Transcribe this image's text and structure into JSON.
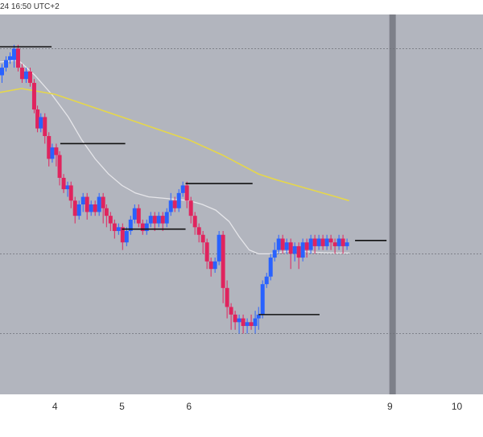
{
  "header": {
    "timestamp_text": "24 16:50 UTC+2"
  },
  "colors": {
    "background": "#b2b5be",
    "bull_candle": "#2962ff",
    "bear_candle": "#e0245e",
    "ma_fast": "#e6e6ea",
    "ma_slow": "#e6d74a",
    "level_lines": "#111111",
    "gridline": "#6f717a",
    "highlight_band": "#7d8089"
  },
  "chart_data": {
    "type": "candlestick",
    "title": "",
    "xlabel": "",
    "ylabel": "",
    "x_ticks": [
      {
        "label": "4",
        "x": 4
      },
      {
        "label": "5",
        "x": 5
      },
      {
        "label": "6",
        "x": 6
      },
      {
        "label": "9",
        "x": 9
      },
      {
        "label": "10",
        "x": 10
      }
    ],
    "xlim": [
      3.18,
      10.39
    ],
    "ylim": [
      0,
      100
    ],
    "y_gridlines": [
      91,
      37,
      16
    ],
    "highlight_x": 9.04,
    "series": [
      {
        "kind": "moving_average",
        "color_key": "ma_fast",
        "points": [
          [
            3.18,
            87.5
          ],
          [
            3.45,
            88
          ],
          [
            3.7,
            84
          ],
          [
            3.95,
            79
          ],
          [
            4.2,
            73
          ],
          [
            4.4,
            67
          ],
          [
            4.6,
            62
          ],
          [
            4.8,
            58
          ],
          [
            5.0,
            55
          ],
          [
            5.2,
            53
          ],
          [
            5.4,
            52
          ],
          [
            5.7,
            51.5
          ],
          [
            6.0,
            51
          ],
          [
            6.2,
            50
          ],
          [
            6.4,
            48.5
          ],
          [
            6.6,
            45.5
          ],
          [
            6.75,
            41.5
          ],
          [
            6.9,
            38
          ],
          [
            7.04,
            37
          ],
          [
            7.2,
            37
          ],
          [
            7.4,
            37.5
          ],
          [
            7.6,
            37.8
          ],
          [
            7.8,
            37.5
          ],
          [
            8.0,
            37.3
          ],
          [
            8.2,
            37.2
          ],
          [
            8.4,
            37.2
          ]
        ]
      },
      {
        "kind": "moving_average",
        "color_key": "ma_slow",
        "points": [
          [
            3.18,
            79.5
          ],
          [
            3.5,
            80.5
          ],
          [
            4.0,
            79
          ],
          [
            4.5,
            76
          ],
          [
            5.0,
            73
          ],
          [
            5.5,
            70
          ],
          [
            6.0,
            67
          ],
          [
            6.5,
            63
          ],
          [
            7.04,
            58
          ],
          [
            7.3,
            56.5
          ],
          [
            7.6,
            55
          ],
          [
            7.9,
            53.5
          ],
          [
            8.2,
            52
          ],
          [
            8.39,
            51
          ]
        ]
      },
      {
        "kind": "horizontal_levels",
        "color_key": "level_lines",
        "segments": [
          [
            3.18,
            3.95,
            91.5
          ],
          [
            4.08,
            5.05,
            66
          ],
          [
            5.0,
            5.95,
            43.5
          ],
          [
            5.95,
            6.95,
            55.5
          ],
          [
            7.04,
            7.95,
            21
          ],
          [
            8.48,
            8.95,
            40.5
          ]
        ]
      }
    ],
    "candles": [
      [
        3.21,
        84,
        86,
        82,
        87
      ],
      [
        3.27,
        86,
        88,
        85,
        89
      ],
      [
        3.33,
        88,
        89,
        87,
        90
      ],
      [
        3.39,
        88,
        91,
        86,
        92
      ],
      [
        3.45,
        91,
        86,
        85,
        92
      ],
      [
        3.51,
        86,
        83,
        82,
        87
      ],
      [
        3.57,
        83,
        85,
        82,
        86
      ],
      [
        3.63,
        85,
        82,
        81,
        86
      ],
      [
        3.69,
        82,
        75,
        74,
        83
      ],
      [
        3.74,
        75,
        70,
        69,
        76
      ],
      [
        3.79,
        70,
        73,
        69,
        74
      ],
      [
        3.85,
        73,
        68,
        66,
        74
      ],
      [
        3.91,
        68,
        62,
        60,
        69
      ],
      [
        3.96,
        62,
        65,
        61,
        66
      ],
      [
        4.02,
        65,
        63,
        60,
        66
      ],
      [
        4.07,
        63,
        57,
        55,
        64
      ],
      [
        4.13,
        57,
        54,
        53,
        58
      ],
      [
        4.19,
        54,
        55,
        52,
        56
      ],
      [
        4.24,
        55,
        51,
        49,
        56
      ],
      [
        4.3,
        51,
        47,
        45,
        52
      ],
      [
        4.36,
        47,
        50,
        46,
        51
      ],
      [
        4.42,
        50,
        52,
        48,
        53
      ],
      [
        4.48,
        52,
        48,
        46,
        53
      ],
      [
        4.54,
        48,
        50,
        47,
        51
      ],
      [
        4.6,
        50,
        48,
        47,
        51
      ],
      [
        4.66,
        48,
        52,
        47,
        53
      ],
      [
        4.72,
        52,
        49,
        45,
        53
      ],
      [
        4.77,
        49,
        47,
        44,
        50
      ],
      [
        4.83,
        47,
        45,
        43,
        48
      ],
      [
        4.89,
        45,
        43,
        41,
        46
      ],
      [
        4.95,
        43,
        44,
        42,
        45
      ],
      [
        5.01,
        44,
        40,
        38,
        45
      ],
      [
        5.07,
        40,
        43,
        39,
        44
      ],
      [
        5.13,
        43,
        46,
        42,
        47
      ],
      [
        5.19,
        46,
        49,
        45,
        50
      ],
      [
        5.25,
        49,
        45,
        44,
        50
      ],
      [
        5.31,
        45,
        43,
        42,
        46
      ],
      [
        5.37,
        43,
        45,
        42,
        46
      ],
      [
        5.43,
        45,
        47,
        44,
        48
      ],
      [
        5.49,
        47,
        45,
        43,
        48
      ],
      [
        5.55,
        45,
        47,
        44,
        48
      ],
      [
        5.61,
        47,
        45,
        43,
        48
      ],
      [
        5.67,
        45,
        48,
        44,
        49
      ],
      [
        5.73,
        48,
        51,
        47,
        53
      ],
      [
        5.79,
        51,
        49,
        48,
        52
      ],
      [
        5.85,
        49,
        53,
        48,
        54
      ],
      [
        5.91,
        53,
        55,
        52,
        56
      ],
      [
        5.97,
        55,
        51,
        49,
        56
      ],
      [
        6.03,
        51,
        47,
        45,
        52
      ],
      [
        6.09,
        47,
        44,
        42,
        48
      ],
      [
        6.15,
        44,
        42,
        40,
        45
      ],
      [
        6.21,
        42,
        40,
        37,
        43
      ],
      [
        6.27,
        40,
        35,
        33,
        41
      ],
      [
        6.33,
        35,
        33,
        31,
        36
      ],
      [
        6.39,
        33,
        35,
        32,
        36
      ],
      [
        6.45,
        35,
        42,
        34,
        43
      ],
      [
        6.51,
        42,
        28,
        24,
        43
      ],
      [
        6.57,
        28,
        23,
        20,
        30
      ],
      [
        6.63,
        23,
        21,
        17,
        24
      ],
      [
        6.69,
        21,
        19,
        17,
        22
      ],
      [
        6.75,
        19,
        20,
        16,
        21
      ],
      [
        6.81,
        20,
        18,
        16,
        21
      ],
      [
        6.87,
        18,
        19,
        16,
        20
      ],
      [
        6.93,
        19,
        18,
        17,
        21
      ],
      [
        6.99,
        18,
        20,
        16,
        22
      ],
      [
        7.04,
        20,
        21,
        17,
        23
      ],
      [
        7.1,
        21,
        29,
        20,
        30
      ],
      [
        7.16,
        29,
        31,
        28,
        32
      ],
      [
        7.22,
        31,
        36,
        30,
        37
      ],
      [
        7.28,
        36,
        38,
        35,
        40
      ],
      [
        7.34,
        38,
        41,
        37,
        42
      ],
      [
        7.4,
        41,
        38,
        37,
        42
      ],
      [
        7.46,
        38,
        40,
        37,
        41
      ],
      [
        7.52,
        40,
        37,
        33,
        41
      ],
      [
        7.58,
        37,
        39,
        35,
        40
      ],
      [
        7.64,
        39,
        36,
        33,
        40
      ],
      [
        7.7,
        36,
        40,
        35,
        41
      ],
      [
        7.76,
        40,
        38,
        36,
        41
      ],
      [
        7.82,
        38,
        41,
        37,
        42
      ],
      [
        7.88,
        41,
        39,
        37,
        42
      ],
      [
        7.94,
        39,
        41,
        38,
        42
      ],
      [
        8.0,
        41,
        39,
        38,
        42
      ],
      [
        8.06,
        39,
        41,
        38,
        42
      ],
      [
        8.12,
        41,
        40,
        38,
        42
      ],
      [
        8.18,
        40,
        39,
        37,
        41
      ],
      [
        8.24,
        39,
        41,
        38,
        42
      ],
      [
        8.3,
        41,
        39,
        37,
        42
      ],
      [
        8.36,
        39,
        40,
        38,
        41
      ]
    ]
  }
}
